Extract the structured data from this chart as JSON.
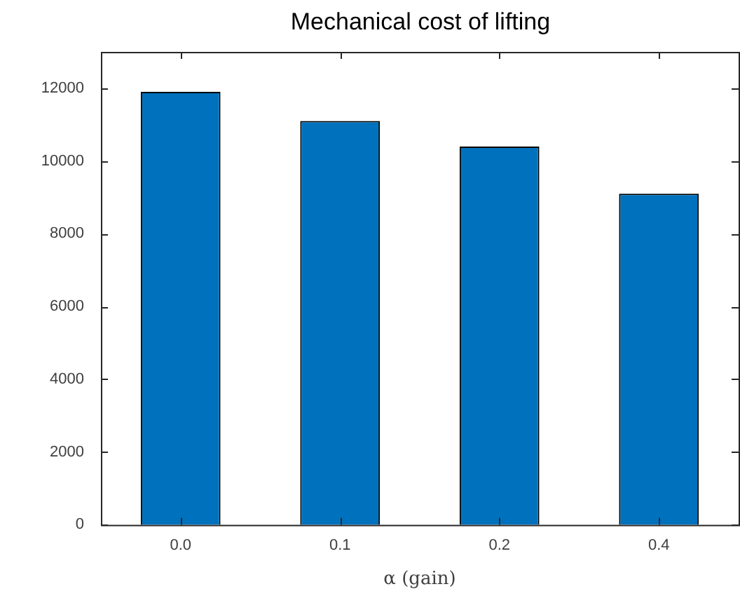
{
  "chart_data": {
    "type": "bar",
    "title": "Mechanical cost of lifting",
    "xlabel": "α (gain)",
    "categories": [
      "0.0",
      "0.1",
      "0.2",
      "0.4"
    ],
    "values": [
      11900,
      11100,
      10400,
      9100
    ],
    "color": "#0072bd",
    "ylim": [
      0,
      13000
    ],
    "yticks": [
      0,
      2000,
      4000,
      6000,
      8000,
      10000,
      12000
    ],
    "grid": false,
    "legend": false
  }
}
